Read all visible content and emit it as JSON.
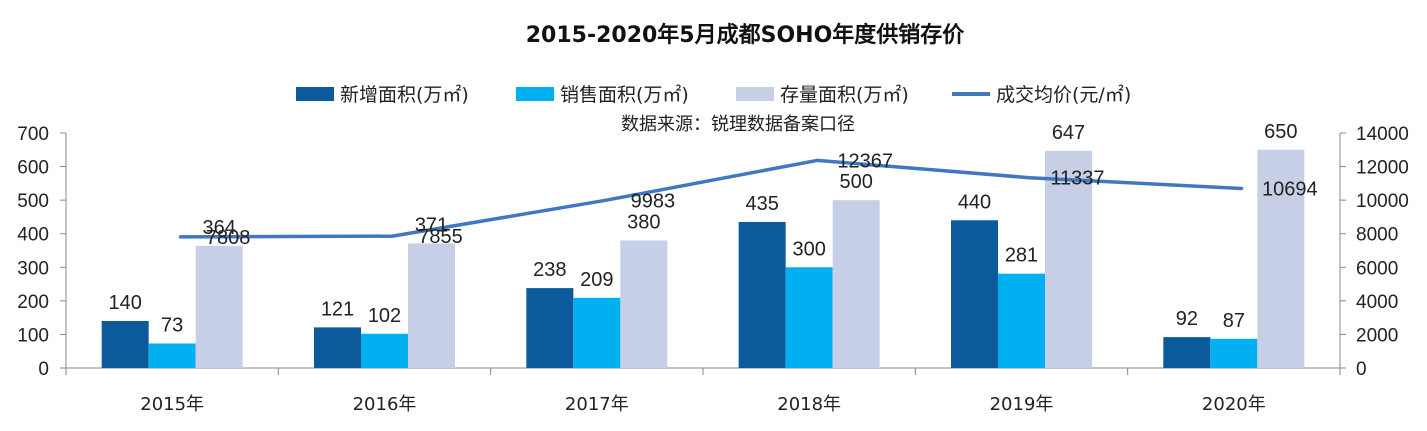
{
  "chart_data": {
    "type": "bar",
    "title": "2015-2020年5月成都SOHO年度供销存价",
    "note": "数据来源：锐理数据备案口径",
    "categories": [
      "2015年",
      "2016年",
      "2017年",
      "2018年",
      "2019年",
      "2020年"
    ],
    "series": [
      {
        "name": "新增面积(万㎡)",
        "type": "bar",
        "axis": "left",
        "color": "#0a5a9c",
        "values": [
          140,
          121,
          238,
          435,
          440,
          92
        ]
      },
      {
        "name": "销售面积(万㎡)",
        "type": "bar",
        "axis": "left",
        "color": "#00b0f0",
        "values": [
          73,
          102,
          209,
          300,
          281,
          87
        ]
      },
      {
        "name": "存量面积(万㎡)",
        "type": "bar",
        "axis": "left",
        "color": "#c6cfe6",
        "values": [
          364,
          371,
          380,
          500,
          647,
          650
        ]
      },
      {
        "name": "成交均价(元/㎡)",
        "type": "line",
        "axis": "right",
        "color": "#3f78c0",
        "values": [
          7808,
          7855,
          9983,
          12367,
          11337,
          10694
        ]
      }
    ],
    "y_left": {
      "min": 0,
      "max": 700,
      "step": 100
    },
    "y_right": {
      "min": 0,
      "max": 14000,
      "step": 2000
    },
    "legend_position": "top",
    "grid": false,
    "data_labels": true
  }
}
